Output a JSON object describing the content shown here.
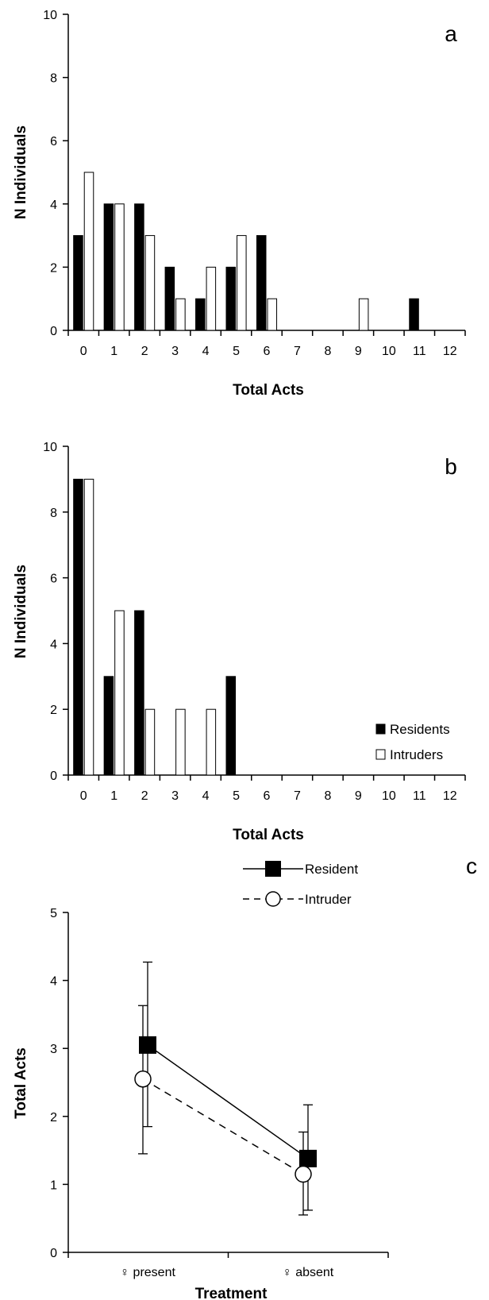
{
  "chart_data": [
    {
      "panel": "a",
      "type": "bar",
      "panel_label": "a",
      "xlabel": "Total Acts",
      "ylabel": "N Individuals",
      "ylim": [
        0,
        10
      ],
      "yticks": [
        0,
        2,
        4,
        6,
        8,
        10
      ],
      "categories": [
        "0",
        "1",
        "2",
        "3",
        "4",
        "5",
        "6",
        "7",
        "8",
        "9",
        "10",
        "11",
        "12"
      ],
      "series": [
        {
          "name": "Residents",
          "fill": "#000000",
          "values": [
            3,
            4,
            4,
            2,
            1,
            2,
            3,
            0,
            0,
            0,
            0,
            1,
            0
          ]
        },
        {
          "name": "Intruders",
          "fill": "#ffffff",
          "values": [
            5,
            4,
            3,
            1,
            2,
            3,
            1,
            0,
            0,
            1,
            0,
            0,
            0
          ]
        }
      ]
    },
    {
      "panel": "b",
      "type": "bar",
      "panel_label": "b",
      "xlabel": "Total Acts",
      "ylabel": "N Individuals",
      "ylim": [
        0,
        10
      ],
      "yticks": [
        0,
        2,
        4,
        6,
        8,
        10
      ],
      "categories": [
        "0",
        "1",
        "2",
        "3",
        "4",
        "5",
        "6",
        "7",
        "8",
        "9",
        "10",
        "11",
        "12"
      ],
      "legend": {
        "position": "bottom-right",
        "entries": [
          "Residents",
          "Intruders"
        ]
      },
      "series": [
        {
          "name": "Residents",
          "fill": "#000000",
          "values": [
            9,
            3,
            5,
            0,
            0,
            3,
            0,
            0,
            0,
            0,
            0,
            0,
            0
          ]
        },
        {
          "name": "Intruders",
          "fill": "#ffffff",
          "values": [
            9,
            5,
            2,
            2,
            2,
            0,
            0,
            0,
            0,
            0,
            0,
            0,
            0
          ]
        }
      ]
    },
    {
      "panel": "c",
      "type": "line",
      "panel_label": "c",
      "xlabel": "Treatment",
      "ylabel": "Total Acts",
      "ylim": [
        0,
        5
      ],
      "yticks": [
        0,
        1,
        2,
        3,
        4,
        5
      ],
      "categories": [
        "♀ present",
        "♀ absent"
      ],
      "legend": {
        "position": "top-right",
        "entries": [
          "Resident",
          "Intruder"
        ]
      },
      "series": [
        {
          "name": "Resident",
          "marker": "square",
          "line": "solid",
          "values": [
            3.05,
            1.38
          ],
          "err_low": [
            1.85,
            0.62
          ],
          "err_high": [
            4.27,
            2.17
          ]
        },
        {
          "name": "Intruder",
          "marker": "circle",
          "line": "dashed",
          "values": [
            2.55,
            1.15
          ],
          "err_low": [
            1.45,
            0.55
          ],
          "err_high": [
            3.63,
            1.77
          ]
        }
      ]
    }
  ]
}
